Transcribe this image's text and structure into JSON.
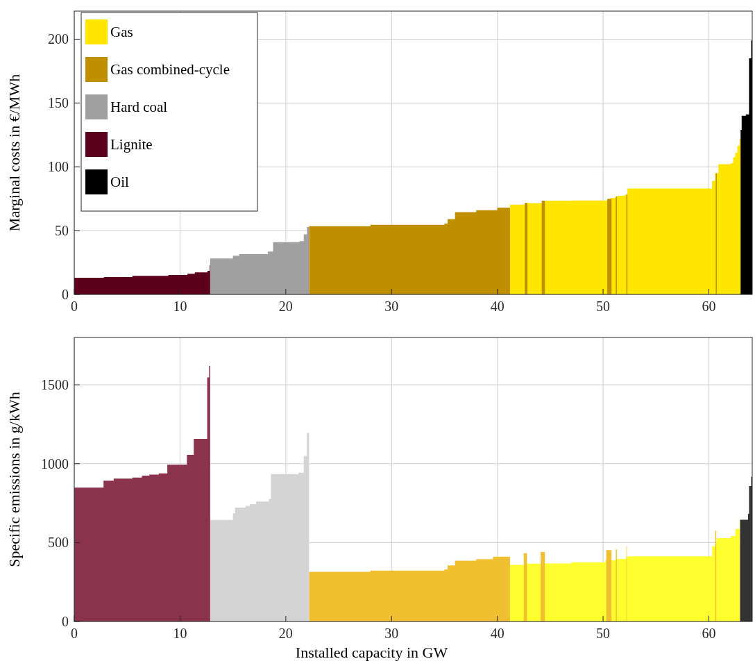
{
  "chart_data": [
    {
      "type": "area",
      "ylabel": "Marginal costs in €/MWh",
      "xlim": [
        0,
        64.1
      ],
      "ylim": [
        0,
        222
      ],
      "xticks": [
        0,
        10,
        20,
        30,
        40,
        50,
        60
      ],
      "yticks": [
        0,
        50,
        100,
        150,
        200
      ],
      "grid": true,
      "legend": "top left",
      "series": [
        {
          "name": "Gas",
          "color": "#ffe600",
          "x": [
            41.2,
            42.85,
            44.5,
            47,
            50.4,
            50.8,
            51.3,
            52.0,
            52.3,
            59.8,
            60.3,
            60.6,
            60.9,
            62.1,
            62.3,
            62.5,
            62.7,
            62.9,
            63.0
          ],
          "values": [
            70.3,
            71.5,
            73.4,
            73.6,
            74.8,
            75.7,
            77.2,
            78,
            83,
            83,
            89,
            95,
            102,
            103,
            107.5,
            111,
            116.6,
            122,
            122
          ]
        },
        {
          "name": "Gas combined-cycle",
          "color": "#bf8f00",
          "x": [
            22.2,
            28,
            35,
            35.3,
            36,
            38,
            40,
            41.2
          ],
          "values": [
            53.5,
            54.5,
            55.5,
            59,
            64.5,
            66,
            68,
            68
          ]
        },
        {
          "color": "#bf8f00",
          "x": [
            42.6,
            42.85
          ],
          "values": [
            71.8,
            71.8
          ]
        },
        {
          "color": "#bf8f00",
          "x": [
            44.2,
            44.5
          ],
          "values": [
            73.4,
            73.4
          ]
        },
        {
          "color": "#bf8f00",
          "x": [
            50.4,
            50.7,
            50.8
          ],
          "values": [
            74.8,
            75.4,
            75.4
          ]
        },
        {
          "color": "#bf8f00",
          "x": [
            51.2,
            51.3
          ],
          "values": [
            76.7,
            76.7
          ]
        },
        {
          "color": "#bf8f00",
          "x": [
            52.2,
            52.3
          ],
          "values": [
            78.5,
            78.5
          ]
        },
        {
          "color": "#bf8f00",
          "x": [
            60.65,
            60.75
          ],
          "values": [
            95,
            95
          ]
        },
        {
          "name": "Hard coal",
          "color": "#a0a0a0",
          "x": [
            12.85,
            15.0,
            15.6,
            18.3,
            18.8,
            21.3,
            21.7,
            22.0,
            22.2
          ],
          "values": [
            28.2,
            30.3,
            31.6,
            33.6,
            41,
            41.8,
            47,
            52.9,
            52.9
          ]
        },
        {
          "name": "Lignite",
          "color": "#5c001e",
          "x": [
            0,
            2.8,
            5.5,
            8.9,
            10.7,
            11.4,
            12.6,
            12.8,
            12.85
          ],
          "values": [
            13.1,
            13.6,
            14.5,
            15.3,
            16.2,
            17.3,
            18.5,
            23,
            23
          ]
        },
        {
          "name": "Oil",
          "color": "#000000",
          "x": [
            63.0,
            63.1,
            63.5,
            63.8,
            64.0,
            64.1
          ],
          "values": [
            129,
            140,
            141,
            185,
            199,
            199
          ]
        }
      ]
    },
    {
      "type": "area",
      "xlabel": "Installed capacity in GW",
      "ylabel": "Specific emissions in g/kWh",
      "xlim": [
        0,
        64.1
      ],
      "ylim": [
        0,
        1800
      ],
      "xticks": [
        0,
        10,
        20,
        30,
        40,
        50,
        60
      ],
      "yticks": [
        0,
        500,
        1000,
        1500
      ],
      "grid": true,
      "series": [
        {
          "color": "#ffff30",
          "x": [
            41.2,
            42.8,
            44.5,
            47,
            50.2,
            51.3,
            52.2,
            52.3,
            59.8,
            60.3,
            60.6,
            60.75,
            62.1,
            62.5,
            62.9,
            62.95
          ],
          "values": [
            359,
            366,
            367,
            375,
            388,
            396,
            410,
            413,
            413,
            476,
            506,
            528,
            542,
            586,
            638,
            638
          ]
        },
        {
          "color": "#f0c030",
          "x": [
            22.2,
            28,
            35,
            35.3,
            36,
            38,
            39.6,
            41.2
          ],
          "values": [
            315,
            322,
            330,
            355,
            385,
            395,
            410,
            410
          ]
        },
        {
          "color": "#f0c030",
          "x": [
            42.5,
            42.8
          ],
          "values": [
            432,
            432
          ]
        },
        {
          "color": "#f0c030",
          "x": [
            44.1,
            44.5
          ],
          "values": [
            440,
            440
          ]
        },
        {
          "color": "#f0c030",
          "x": [
            50.3,
            50.8
          ],
          "values": [
            452,
            452
          ]
        },
        {
          "color": "#f0c030",
          "x": [
            51.2,
            51.3
          ],
          "values": [
            457,
            457
          ]
        },
        {
          "color": "#f0c030",
          "x": [
            52.2,
            52.25
          ],
          "values": [
            476,
            476
          ]
        },
        {
          "color": "#f0c030",
          "x": [
            60.6,
            60.7
          ],
          "values": [
            575,
            575
          ]
        },
        {
          "color": "#d4d4d4",
          "x": [
            12.85,
            15.0,
            15.2,
            16.2,
            16.6,
            17.2,
            18.4,
            18.6,
            21.2,
            21.7,
            22.0,
            22.2
          ],
          "values": [
            644,
            685,
            722,
            733,
            744,
            760,
            777,
            934,
            943,
            1050,
            1195,
            1195
          ]
        },
        {
          "color": "#8b324c",
          "x": [
            0,
            2.77,
            3.73,
            5.5,
            6.4,
            7.1,
            8.0,
            8.8,
            10.65,
            11.3,
            12.57,
            12.75,
            12.85
          ],
          "values": [
            848,
            892,
            905,
            912,
            924,
            931,
            938,
            993,
            1056,
            1158,
            1547,
            1620,
            1620
          ]
        },
        {
          "color": "#333333",
          "x": [
            62.95,
            63.7,
            63.8,
            64.0,
            64.1
          ],
          "values": [
            645,
            682,
            858,
            916,
            916
          ]
        }
      ]
    }
  ]
}
